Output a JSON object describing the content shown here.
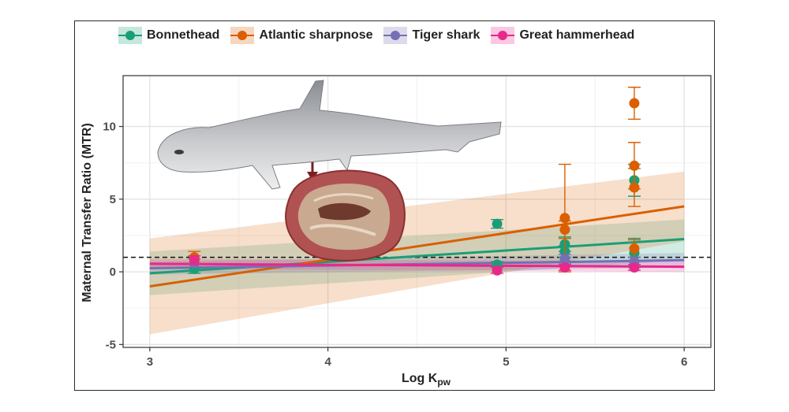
{
  "chart_data": {
    "type": "scatter",
    "xlabel": "Log K",
    "xlabel_sub": "pw",
    "ylabel": "Maternal Transfer Ratio (MTR)",
    "xlim": [
      2.85,
      6.15
    ],
    "ylim": [
      -5.2,
      13.5
    ],
    "xticks": [
      3,
      4,
      5,
      6
    ],
    "yticks": [
      -5,
      0,
      5,
      10
    ],
    "reference_line_y": 1,
    "grid": true,
    "legend_position": "top",
    "series": [
      {
        "name": "Bonnethead",
        "color": "#1b9e77",
        "points": [
          {
            "x": 3.25,
            "y": 0.2,
            "err": 0.3
          },
          {
            "x": 4.95,
            "y": 3.3,
            "err": 0.3
          },
          {
            "x": 4.95,
            "y": 0.5,
            "err": 0.2
          },
          {
            "x": 5.33,
            "y": 1.9,
            "err": 0.5
          },
          {
            "x": 5.33,
            "y": 1.4,
            "err": 0.4
          },
          {
            "x": 5.72,
            "y": 6.3,
            "err": 1.1
          },
          {
            "x": 5.72,
            "y": 1.3,
            "err": 1.0
          }
        ],
        "fit": {
          "x0": 3.0,
          "y0": -0.1,
          "x1": 6.0,
          "y1": 2.25
        },
        "band": {
          "lower0": -1.6,
          "upper0": 1.4,
          "lower1": 0.8,
          "upper1": 3.6
        }
      },
      {
        "name": "Atlantic sharpnose",
        "color": "#d95f02",
        "points": [
          {
            "x": 3.25,
            "y": 1.0,
            "err": 0.4
          },
          {
            "x": 5.33,
            "y": 3.7,
            "err": 3.7
          },
          {
            "x": 5.33,
            "y": 2.9,
            "err": 0.6
          },
          {
            "x": 5.72,
            "y": 11.6,
            "err": 1.1
          },
          {
            "x": 5.72,
            "y": 7.3,
            "err": 1.6
          },
          {
            "x": 5.72,
            "y": 5.8,
            "err": 1.3
          },
          {
            "x": 5.72,
            "y": 1.6,
            "err": 0.6
          }
        ],
        "fit": {
          "x0": 3.0,
          "y0": -1.0,
          "x1": 6.0,
          "y1": 4.5
        },
        "band": {
          "lower0": -4.3,
          "upper0": 2.3,
          "lower1": 2.1,
          "upper1": 6.9
        }
      },
      {
        "name": "Tiger shark",
        "color": "#7570b3",
        "points": [
          {
            "x": 3.25,
            "y": 0.6,
            "err": 0.3
          },
          {
            "x": 5.33,
            "y": 0.9,
            "err": 0.3
          },
          {
            "x": 5.72,
            "y": 0.7,
            "err": 0.3
          }
        ],
        "fit": {
          "x0": 3.0,
          "y0": 0.25,
          "x1": 6.0,
          "y1": 0.8
        },
        "band": {
          "lower0": -0.2,
          "upper0": 0.7,
          "lower1": 0.3,
          "upper1": 1.3
        }
      },
      {
        "name": "Great hammerhead",
        "color": "#e7298a",
        "points": [
          {
            "x": 3.25,
            "y": 0.8,
            "err": 0.3
          },
          {
            "x": 4.95,
            "y": 0.1,
            "err": 0.2
          },
          {
            "x": 5.33,
            "y": 0.3,
            "err": 0.2
          },
          {
            "x": 5.72,
            "y": 0.3,
            "err": 0.2
          }
        ],
        "fit": {
          "x0": 3.0,
          "y0": 0.55,
          "x1": 6.0,
          "y1": 0.35
        },
        "band": {
          "lower0": 0.2,
          "upper0": 0.9,
          "lower1": 0.0,
          "upper1": 0.7
        }
      }
    ]
  }
}
